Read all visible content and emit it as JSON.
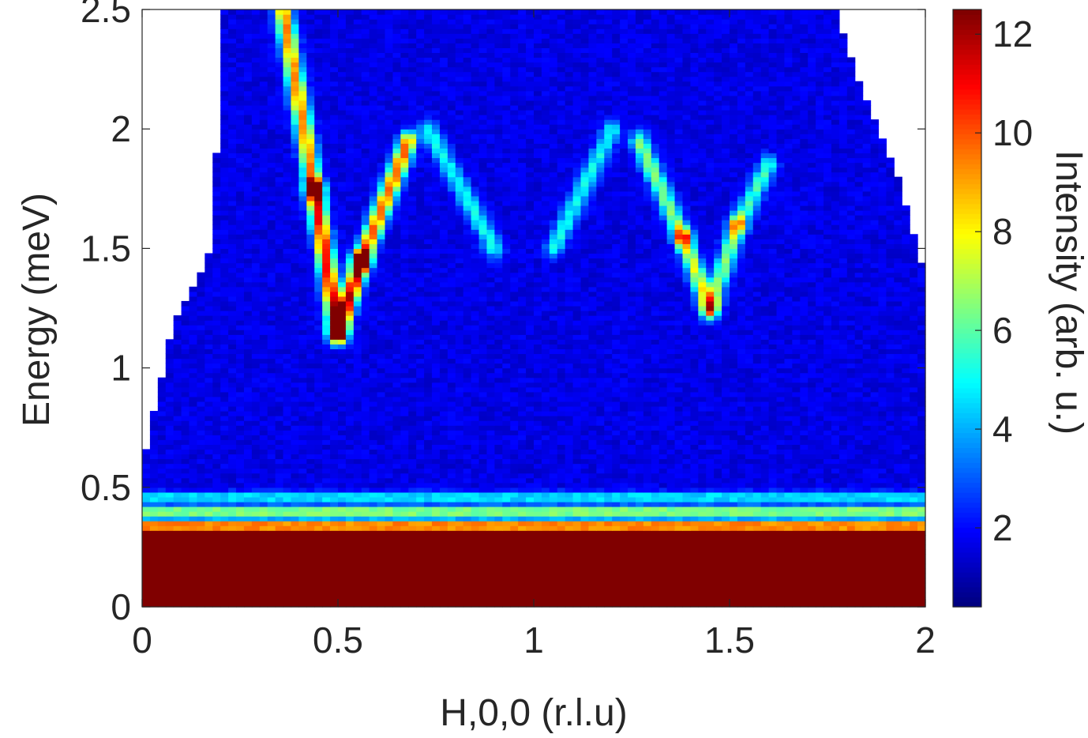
{
  "chart_data": {
    "type": "heatmap",
    "title": "",
    "xlabel": "H,0,0 (r.l.u)",
    "ylabel": "Energy (meV)",
    "colorbar_label": "Intensity (arb. u.)",
    "colormap": "jet",
    "xlim": [
      0,
      2
    ],
    "ylim": [
      0,
      2.5
    ],
    "clim": [
      0.4,
      12.5
    ],
    "x_ticks": [
      "0",
      "0.5",
      "1",
      "1.5",
      "2"
    ],
    "y_ticks": [
      "0",
      "0.5",
      "1",
      "1.5",
      "2",
      "2.5"
    ],
    "colorbar_ticks": [
      "2",
      "4",
      "6",
      "8",
      "10",
      "12"
    ],
    "grid": false,
    "elastic_line": {
      "energy_upper": 0.33,
      "intensity": 12.5
    },
    "background_intensity": 1.6,
    "coverage_left_edge": [
      {
        "energy": 0.58,
        "h": 0.0
      },
      {
        "energy": 1.2,
        "h": 0.08
      },
      {
        "energy": 1.5,
        "h": 0.18
      },
      {
        "energy": 2.3,
        "h": 0.2
      },
      {
        "energy": 2.5,
        "h": 0.21
      }
    ],
    "coverage_right_edge": [
      {
        "energy": 1.38,
        "h": 2.0
      },
      {
        "energy": 1.85,
        "h": 1.92
      },
      {
        "energy": 2.15,
        "h": 1.84
      },
      {
        "energy": 2.5,
        "h": 1.77
      }
    ],
    "dispersion_branches": [
      {
        "points": [
          {
            "h": 0.5,
            "energy": 1.15
          },
          {
            "h": 0.44,
            "energy": 1.75
          },
          {
            "h": 0.36,
            "energy": 2.5
          }
        ],
        "peak_intensity": 9.5
      },
      {
        "points": [
          {
            "h": 0.5,
            "energy": 1.15
          },
          {
            "h": 0.56,
            "energy": 1.45
          },
          {
            "h": 0.68,
            "energy": 1.95
          }
        ],
        "peak_intensity": 10.0
      },
      {
        "points": [
          {
            "h": 1.45,
            "energy": 1.25
          },
          {
            "h": 1.38,
            "energy": 1.55
          },
          {
            "h": 1.27,
            "energy": 1.95
          }
        ],
        "peak_intensity": 6.0
      },
      {
        "points": [
          {
            "h": 1.45,
            "energy": 1.25
          },
          {
            "h": 1.52,
            "energy": 1.6
          },
          {
            "h": 1.6,
            "energy": 1.85
          }
        ],
        "peak_intensity": 5.0
      },
      {
        "points": [
          {
            "h": 0.73,
            "energy": 2.0
          },
          {
            "h": 0.9,
            "energy": 1.5
          }
        ],
        "peak_intensity": 3.5
      },
      {
        "points": [
          {
            "h": 1.2,
            "energy": 2.0
          },
          {
            "h": 1.05,
            "energy": 1.5
          }
        ],
        "peak_intensity": 3.5
      }
    ],
    "intensity_bands": [
      {
        "energy": 0.34,
        "intensity": 9.5
      },
      {
        "energy": 0.4,
        "intensity": 5.8
      },
      {
        "energy": 0.46,
        "intensity": 3.5
      }
    ]
  }
}
